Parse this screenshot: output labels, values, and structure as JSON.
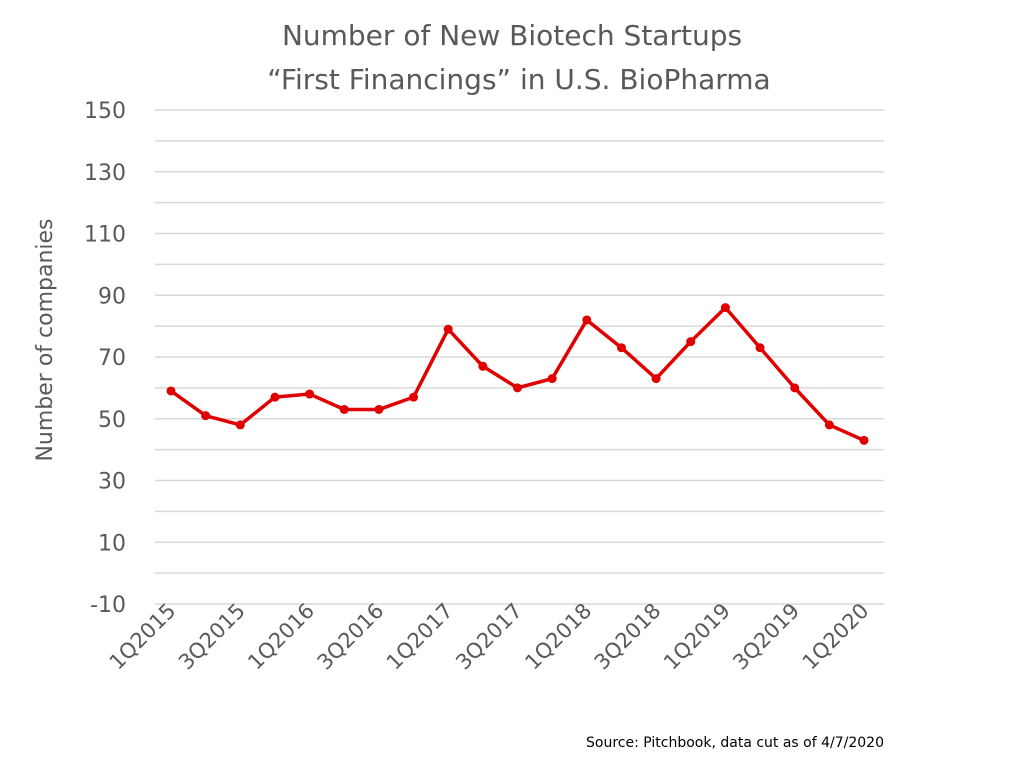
{
  "chart_data": {
    "type": "line",
    "title": "Number of New Biotech Startups",
    "subtitle": "“First Financings” in U.S. BioPharma",
    "ylabel": "Number of companies",
    "xlabel": "",
    "ylim": [
      -10,
      150
    ],
    "yticks": [
      -10,
      10,
      30,
      50,
      70,
      90,
      110,
      130,
      150
    ],
    "grid": true,
    "legend": "none",
    "colors": {
      "line": "#e00000",
      "text": "#595959",
      "grid": "#d9d9d9"
    },
    "x": [
      "1Q2015",
      "2Q2015",
      "3Q2015",
      "4Q2015",
      "1Q2016",
      "2Q2016",
      "3Q2016",
      "4Q2016",
      "1Q2017",
      "2Q2017",
      "3Q2017",
      "4Q2017",
      "1Q2018",
      "2Q2018",
      "3Q2018",
      "4Q2018",
      "1Q2019",
      "2Q2019",
      "3Q2019",
      "4Q2019",
      "1Q2020"
    ],
    "x_tick_labels": [
      "1Q2015",
      "3Q2015",
      "1Q2016",
      "3Q2016",
      "1Q2017",
      "3Q2017",
      "1Q2018",
      "3Q2018",
      "1Q2019",
      "3Q2019",
      "1Q2020"
    ],
    "series": [
      {
        "values": [
          59,
          51,
          48,
          57,
          58,
          53,
          53,
          57,
          79,
          67,
          60,
          63,
          82,
          73,
          63,
          75,
          86,
          73,
          60,
          48,
          43
        ]
      }
    ]
  },
  "source_note": "Source: Pitchbook, data cut as of 4/7/2020"
}
